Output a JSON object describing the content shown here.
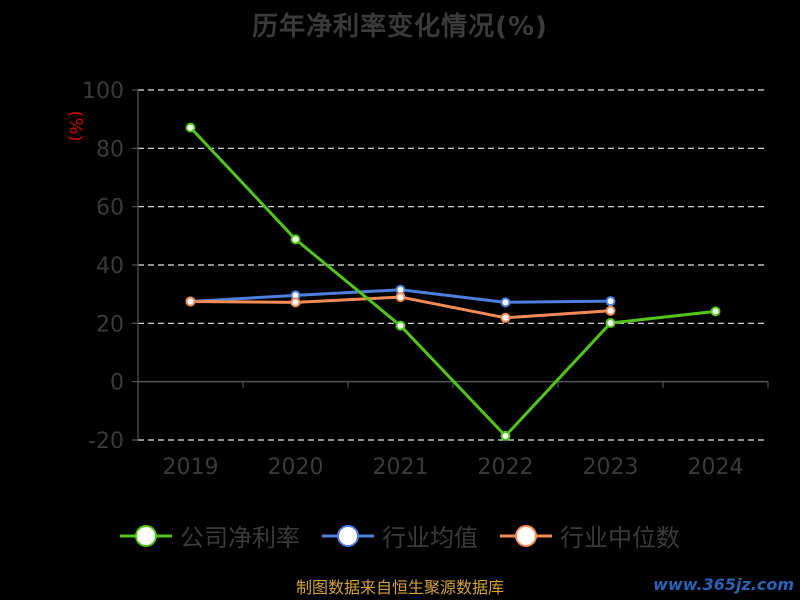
{
  "title": "历年净利率变化情况(%)",
  "footer": "制图数据来自恒生聚源数据库",
  "watermark": "www.365jz.com",
  "chart_data": {
    "type": "line",
    "title": "历年净利率变化情况(%)",
    "ylabel": "(%)",
    "ylabel_color": "#cc0000",
    "categories": [
      "2019",
      "2020",
      "2021",
      "2022",
      "2023",
      "2024"
    ],
    "ylim": [
      -20,
      100
    ],
    "yticks": [
      "100",
      "80",
      "60",
      "40",
      "20",
      "0",
      "-20"
    ],
    "grid": true,
    "legend_position": "bottom",
    "series": [
      {
        "name": "公司净利率",
        "color": "#52c41a",
        "values": [
          87.1,
          48.8,
          19.2,
          -18.6,
          20.1,
          24.1
        ]
      },
      {
        "name": "行业均值",
        "color": "#4e7fdf",
        "values": [
          27.5,
          29.6,
          31.5,
          27.2,
          27.6,
          null
        ]
      },
      {
        "name": "行业中位数",
        "color": "#f58b56",
        "values": [
          27.5,
          27.2,
          29.0,
          21.9,
          24.3,
          null
        ]
      }
    ]
  }
}
